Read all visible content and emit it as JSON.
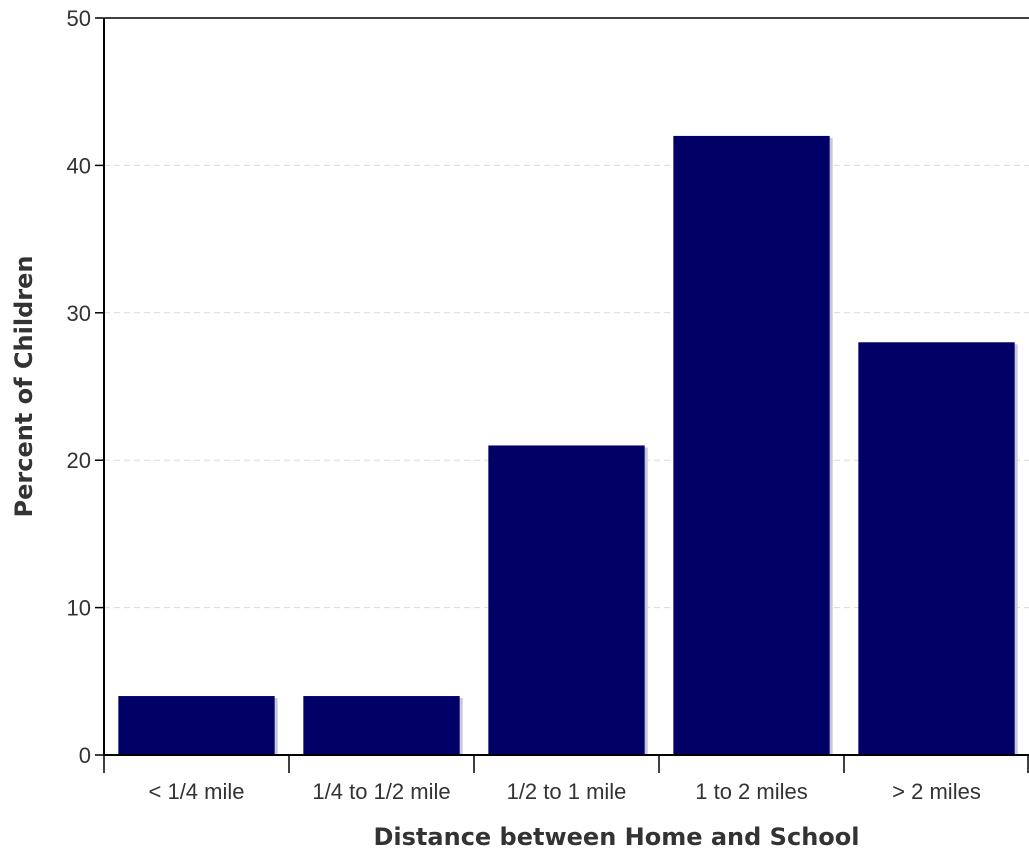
{
  "chart_data": {
    "type": "bar",
    "title": "",
    "xlabel": "Distance between Home and School",
    "ylabel": "Percent of Children",
    "categories": [
      "< 1/4 mile",
      "1/4 to 1/2 mile",
      "1/2 to 1 mile",
      "1 to 2 miles",
      "> 2 miles"
    ],
    "values": [
      4,
      4,
      21,
      42,
      28
    ],
    "ylim": [
      0,
      50
    ],
    "yticks": [
      "0",
      "10",
      "20",
      "30",
      "40",
      "50"
    ],
    "grid": true,
    "legend": "none",
    "colors": {
      "bar": "#000066",
      "bar_shadow": "#c8c8d8",
      "axis": "#000000",
      "grid": "#d9d9d9"
    }
  }
}
